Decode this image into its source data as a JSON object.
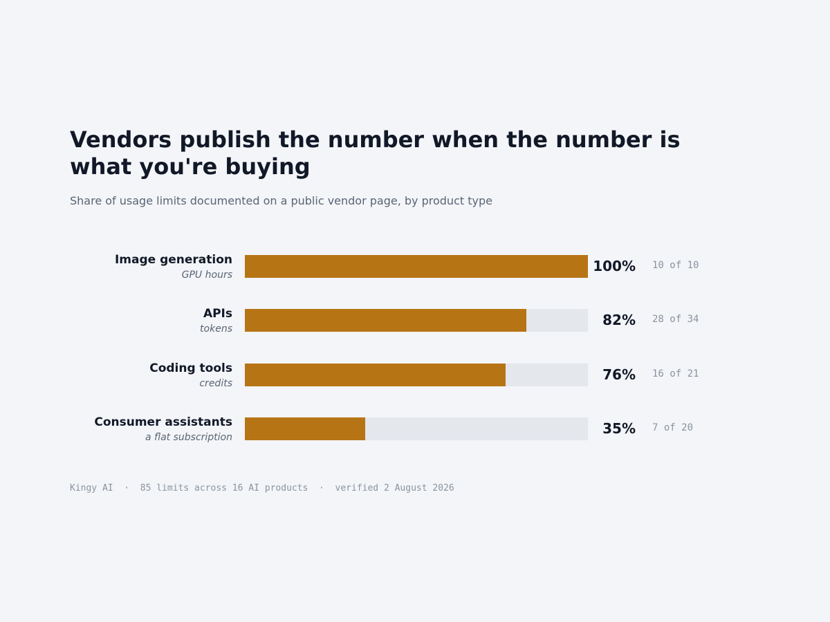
{
  "title": "Vendors publish the number when the number is what you're buying",
  "subtitle": "Share of usage limits documented on a public vendor page, by product type",
  "footer": "Kingy AI  ·  85 limits across 16 AI products  ·  verified 2 August 2026",
  "colors": {
    "background": "#f3f5f8",
    "bar_fill": "#b77415",
    "bar_track": "#e4e7ec",
    "text_primary": "#111827",
    "text_secondary": "#5a6474",
    "text_muted": "#8a93a0"
  },
  "chart_data": {
    "type": "bar",
    "orientation": "horizontal",
    "title": "Vendors publish the number when the number is what you're buying",
    "subtitle": "Share of usage limits documented on a public vendor page, by product type",
    "xlim": [
      0,
      100
    ],
    "grid": false,
    "categories": [
      "Image generation",
      "APIs",
      "Coding tools",
      "Consumer assistants"
    ],
    "units": [
      "GPU hours",
      "tokens",
      "credits",
      "a flat subscription"
    ],
    "values": [
      100,
      82,
      76,
      35
    ],
    "value_labels": [
      "100%",
      "82%",
      "76%",
      "35%"
    ],
    "count_labels": [
      "10 of 10",
      "28 of 34",
      "16 of 21",
      "7 of 20"
    ]
  }
}
